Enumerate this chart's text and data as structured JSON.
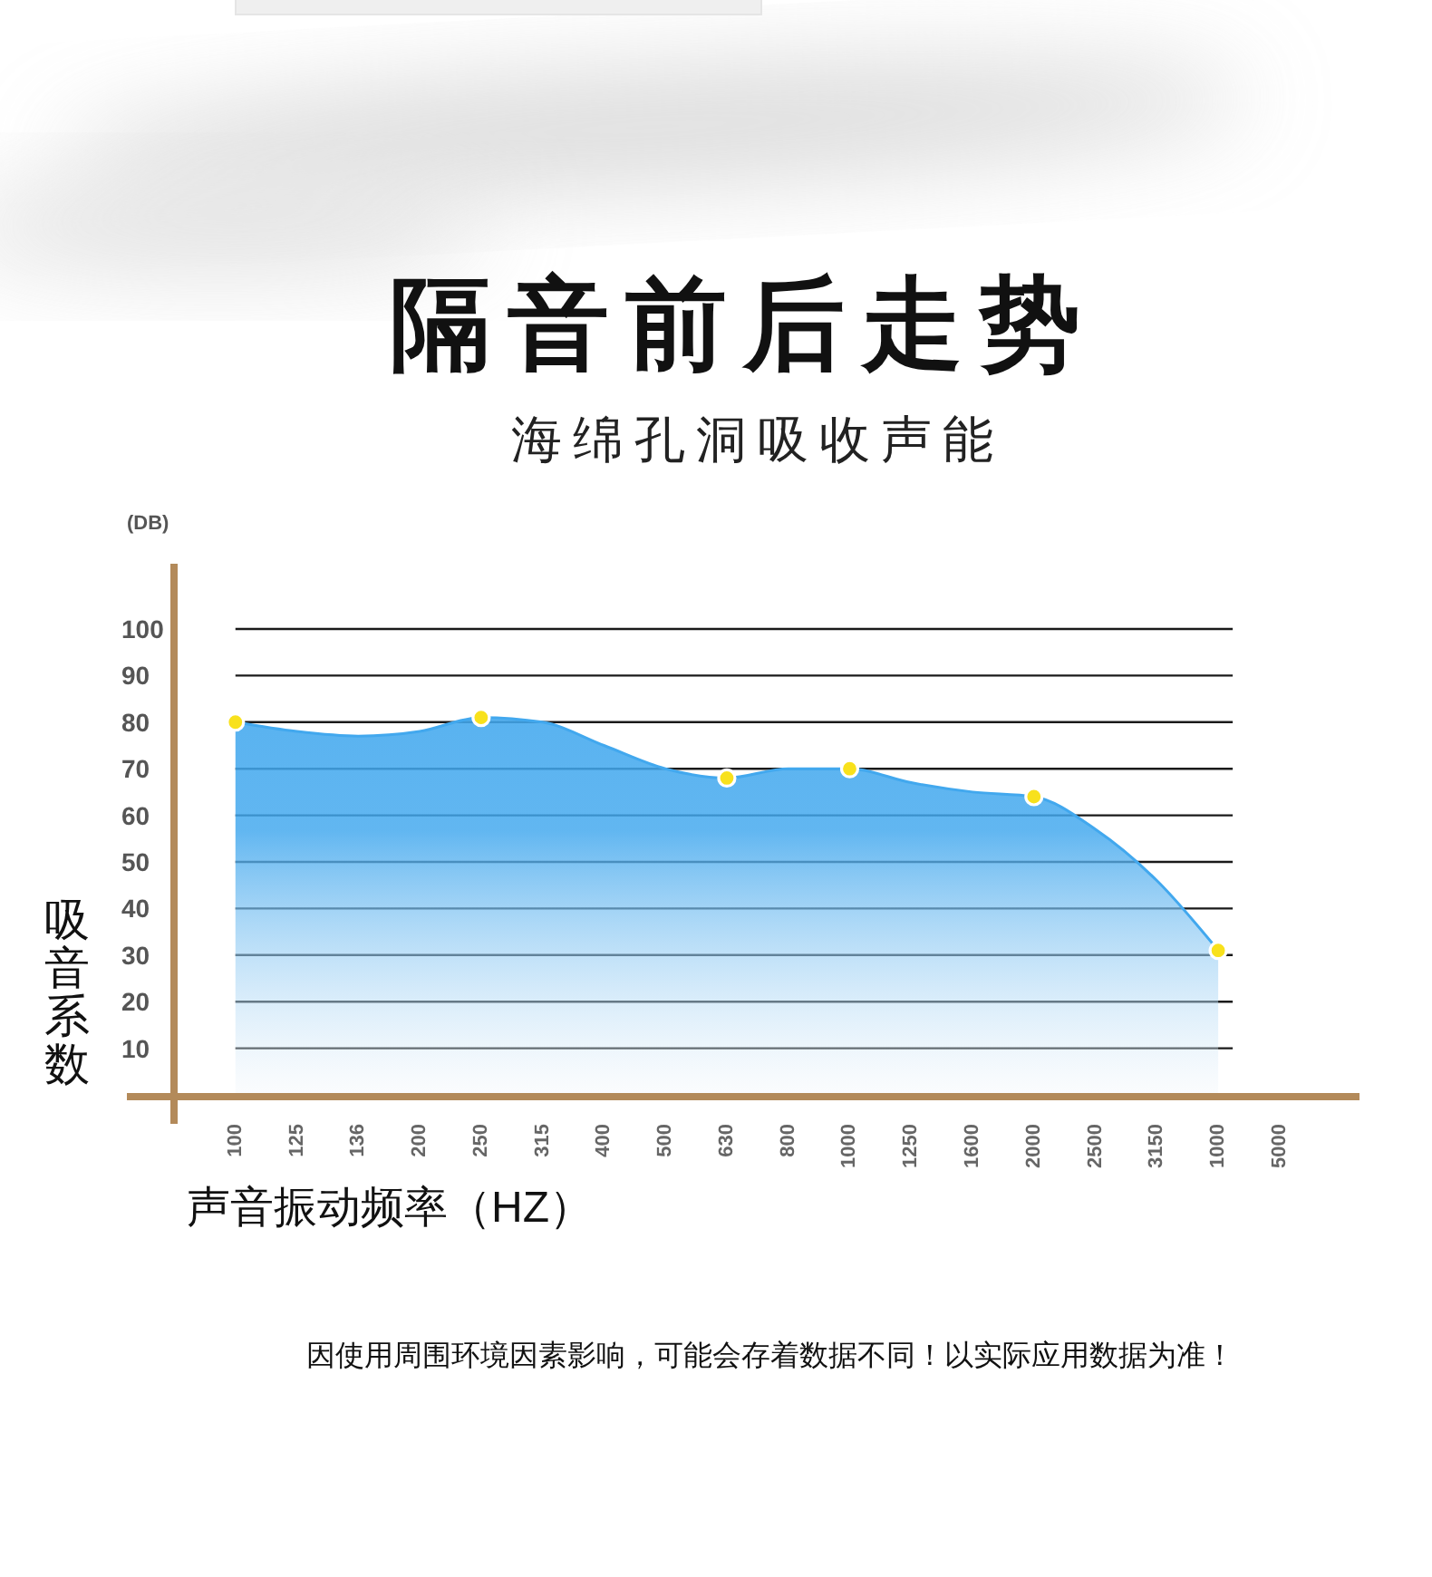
{
  "chart_data": {
    "type": "area",
    "title": "隔音前后走势",
    "subtitle": "海绵孔洞吸收声能",
    "xlabel": "声音振动频率（HZ）",
    "ylabel": "吸音系数",
    "annotations": [
      "(DB)",
      "因使用周围环境因素影响，可能会存着数据不同！以实际应用数据为准！"
    ],
    "categories": [
      "100",
      "125",
      "136",
      "200",
      "250",
      "315",
      "400",
      "500",
      "630",
      "800",
      "1000",
      "1250",
      "1600",
      "2000",
      "2500",
      "3150",
      "1000",
      "5000"
    ],
    "ylim": [
      0,
      114
    ],
    "yticks": [
      10,
      20,
      30,
      40,
      50,
      60,
      70,
      80,
      90,
      100
    ],
    "grid": "y",
    "series": [
      {
        "color": "#42a8ee",
        "values": [
          80,
          78,
          77,
          78,
          81,
          80,
          75,
          70,
          68,
          70,
          70,
          67,
          65,
          64,
          57,
          46,
          31,
          null
        ]
      },
      {
        "type": "scatter",
        "color": "#f8e11c",
        "marker": "circle",
        "values": [
          80,
          null,
          null,
          null,
          81,
          null,
          null,
          null,
          68,
          null,
          70,
          null,
          null,
          64,
          null,
          null,
          31,
          null
        ]
      }
    ]
  }
}
